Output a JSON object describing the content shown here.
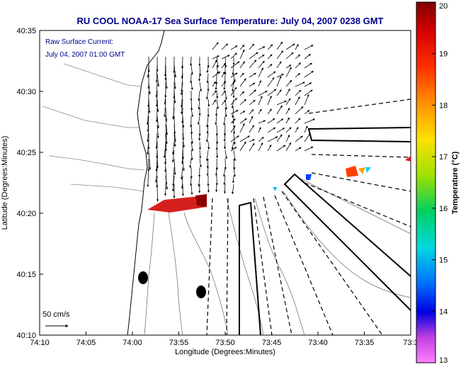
{
  "chart_data": {
    "type": "map",
    "title": "RU COOL   NOAA-17  Sea Surface Temperature:  July 04, 2007 0238 GMT",
    "xlabel": "Longitude (Degrees:Minutes)",
    "ylabel": "Latitude (Degrees:Minutes)",
    "x_ticks": [
      "74:10",
      "74:05",
      "74:00",
      "73:55",
      "73:50",
      "73:45",
      "73:40",
      "73:35",
      "73:3"
    ],
    "y_ticks": [
      "40:35",
      "40:30",
      "40:25",
      "40:20",
      "40:15",
      "40:10"
    ],
    "xlim": [
      -74.1667,
      -73.5
    ],
    "ylim": [
      40.1667,
      40.5833
    ],
    "annotation_lines": [
      "Raw Surface Current:",
      "July 04, 2007 01:00 GMT"
    ],
    "scale_label": "50 cm/s",
    "colorbar": {
      "label": "Temperature (°C)",
      "min": 13,
      "max": 20,
      "ticks": [
        "20",
        "19",
        "18",
        "17",
        "16",
        "15",
        "14",
        "13"
      ]
    },
    "grid": false
  }
}
